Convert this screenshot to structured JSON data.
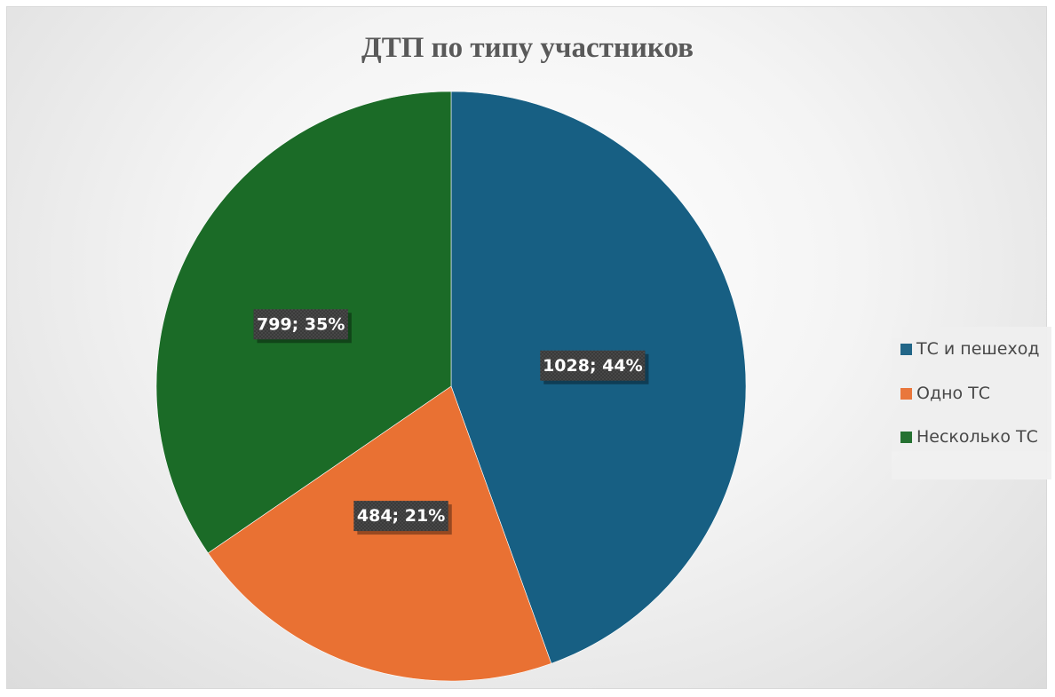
{
  "chart_data": {
    "type": "pie",
    "title": "ДТП по типу участников",
    "categories": [
      "ТС и пешеход",
      "Одно ТС",
      "Несколько ТС"
    ],
    "values": [
      1028,
      484,
      799
    ],
    "percent_labels": [
      "44%",
      "21%",
      "35%"
    ],
    "data_labels": [
      "1028; 44%",
      "484; 21%",
      "799; 35%"
    ],
    "colors": [
      "#175f83",
      "#e97133",
      "#1b6b27"
    ],
    "legend_position": "right",
    "start_angle": "12 o'clock, clockwise"
  }
}
